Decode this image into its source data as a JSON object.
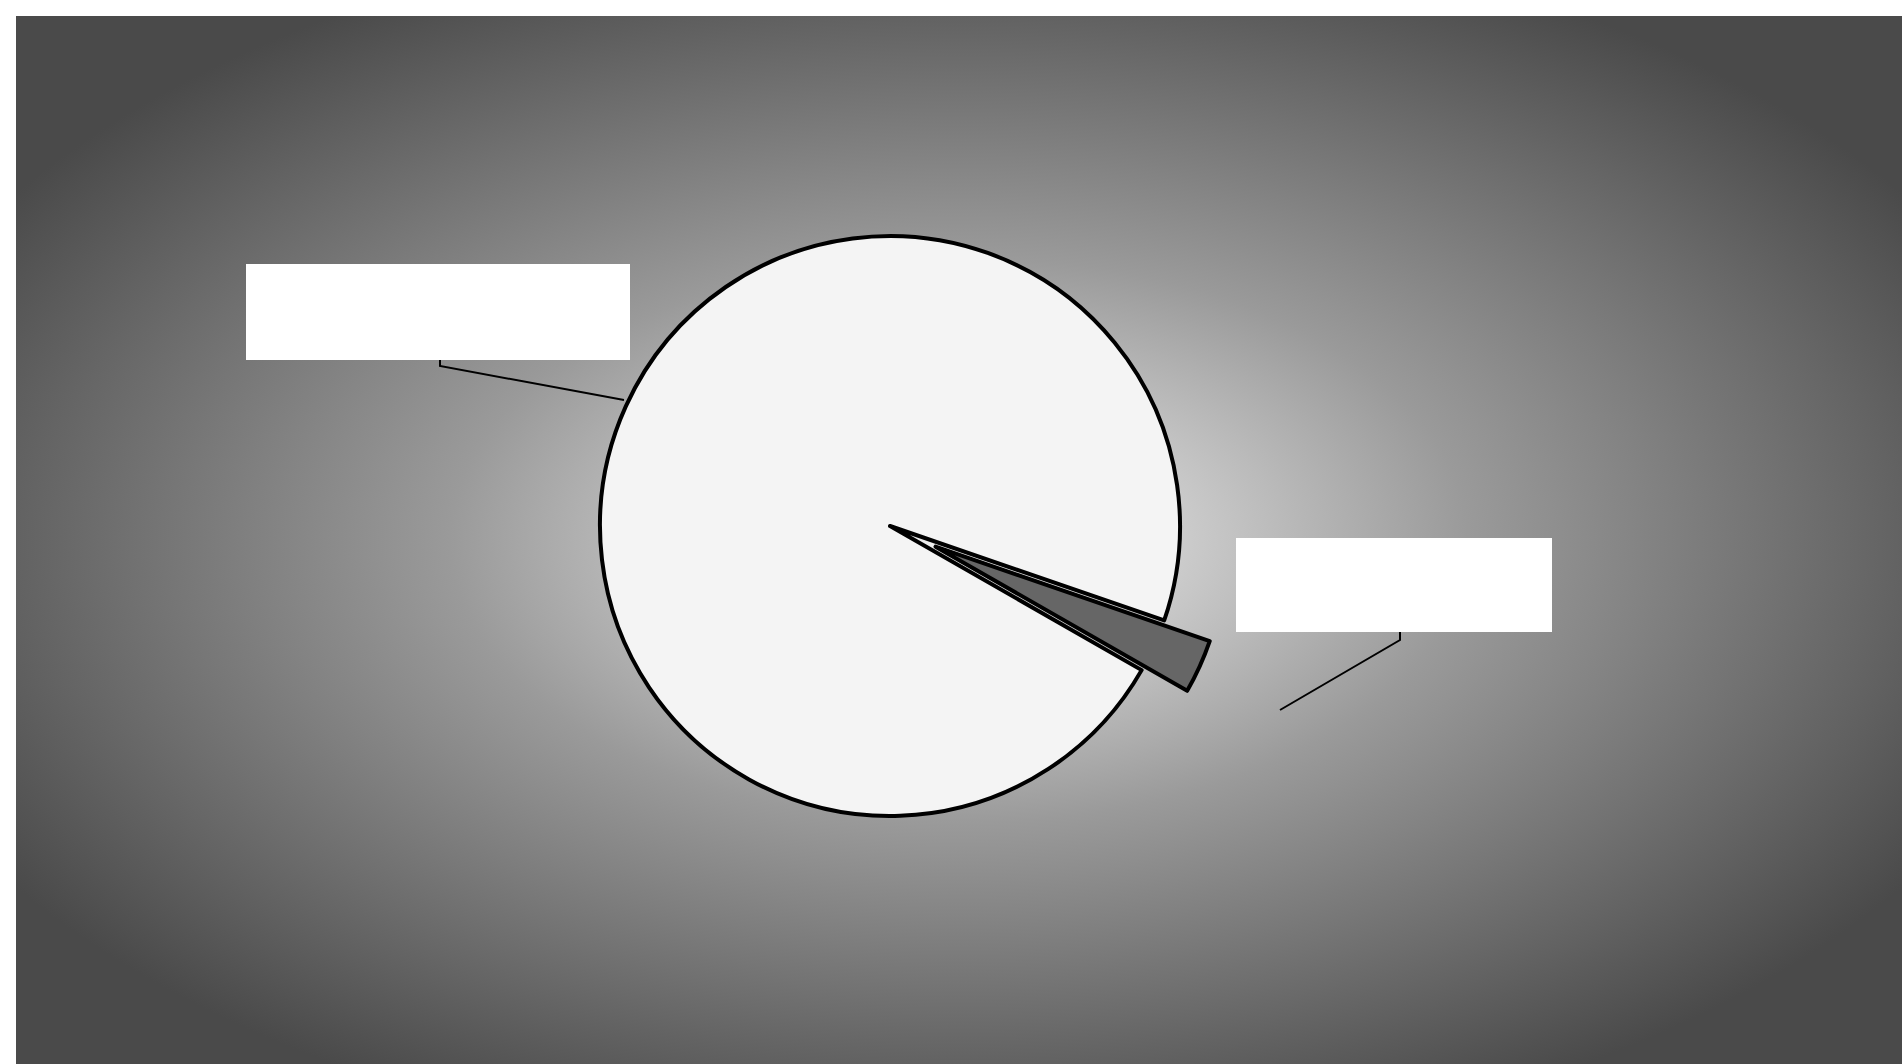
{
  "chart_data": {
    "type": "pie",
    "categories": [
      null,
      null
    ],
    "values": [
      3,
      97
    ],
    "colors": [
      "#666666",
      "#f4f4f4"
    ]
  }
}
